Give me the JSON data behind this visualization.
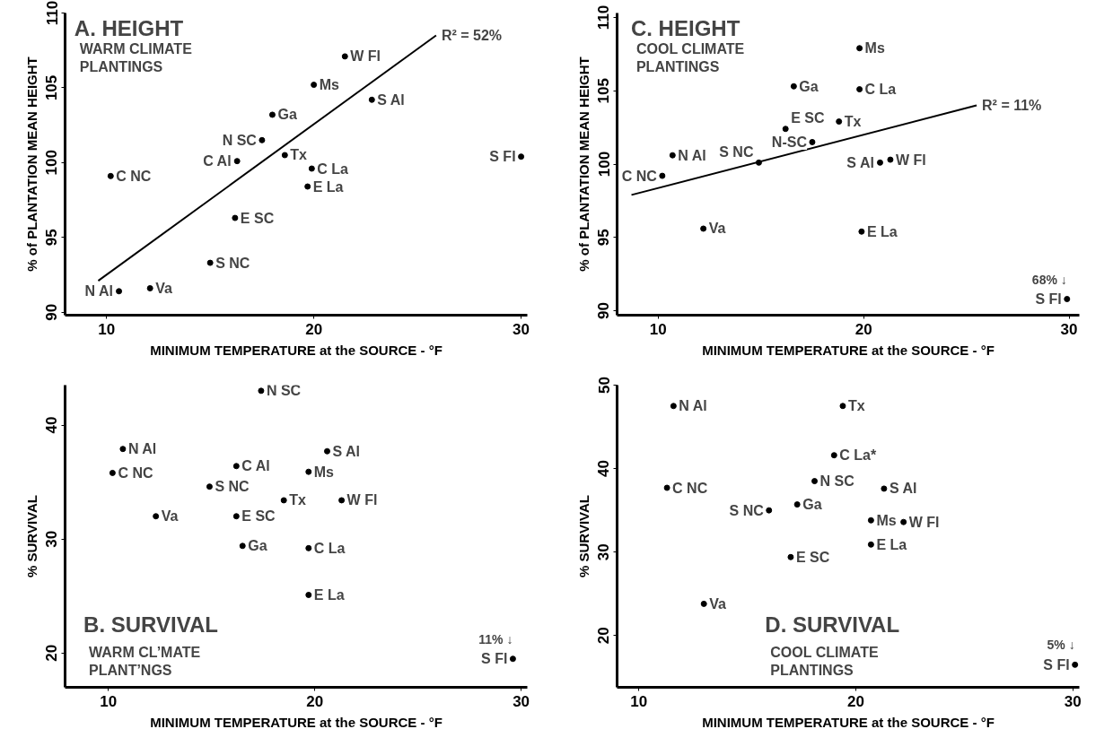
{
  "chart_data": [
    {
      "type": "scatter",
      "title": "A. HEIGHT",
      "subtitle": "WARM CLIMATE\nPLANTINGS",
      "xlabel": "MINIMUM TEMPERATURE at the SOURCE - °F",
      "ylabel": "% of PLANTATION MEAN HEIGHT",
      "xlim": [
        8,
        30.3
      ],
      "ylim": [
        89.8,
        110
      ],
      "xticks": [
        10,
        20,
        30
      ],
      "yticks": [
        90,
        95,
        100,
        105,
        110
      ],
      "series": [
        {
          "marker": "circle",
          "color": "#000000",
          "x": [
            10.6,
            12.1,
            15.0,
            16.2,
            10.2,
            16.3,
            17.5,
            18.0,
            22.8,
            20.0,
            21.5,
            18.6,
            19.9,
            19.7,
            30.0
          ],
          "values": [
            91.4,
            91.6,
            93.3,
            96.3,
            99.1,
            100.1,
            101.5,
            103.2,
            104.2,
            105.2,
            107.1,
            100.5,
            99.6,
            98.4,
            100.4
          ]
        },
        {
          "type": "line",
          "color": "#000000",
          "x": [
            9.6,
            25.9
          ],
          "values": [
            92.1,
            108.5
          ]
        }
      ],
      "annotations": [
        {
          "text": "N Al",
          "x": 10.6,
          "y": 91.4
        },
        {
          "text": "Va",
          "x": 12.1,
          "y": 91.6
        },
        {
          "text": "S NC",
          "x": 15.0,
          "y": 93.3
        },
        {
          "text": "E SC",
          "x": 16.2,
          "y": 96.3
        },
        {
          "text": "C NC",
          "x": 10.2,
          "y": 99.1
        },
        {
          "text": "C Al",
          "x": 16.3,
          "y": 100.1
        },
        {
          "text": "N SC",
          "x": 17.5,
          "y": 101.5
        },
        {
          "text": "Ga",
          "x": 18.0,
          "y": 103.2
        },
        {
          "text": "S Al",
          "x": 22.8,
          "y": 104.2
        },
        {
          "text": "Ms",
          "x": 20.0,
          "y": 105.2
        },
        {
          "text": "W Fl",
          "x": 21.5,
          "y": 107.1
        },
        {
          "text": "Tx",
          "x": 18.6,
          "y": 100.5
        },
        {
          "text": "C La",
          "x": 19.9,
          "y": 99.6
        },
        {
          "text": "E La",
          "x": 19.7,
          "y": 98.4
        },
        {
          "text": "S Fl",
          "x": 30.0,
          "y": 100.4
        },
        {
          "text": "R² = 52%",
          "x": 25.9,
          "y": 108.5
        }
      ]
    },
    {
      "type": "scatter",
      "title": "C. HEIGHT",
      "subtitle": "COOL CLIMATE\nPLANTINGS",
      "xlabel": "MINIMUM TEMPERATURE at the SOURCE - °F",
      "ylabel": "% of PLANTATION MEAN HEIGHT",
      "xlim": [
        8,
        30.5
      ],
      "ylim": [
        89.7,
        110.3
      ],
      "xticks": [
        10,
        20,
        30
      ],
      "yticks": [
        90,
        95,
        100,
        105,
        110
      ],
      "series": [
        {
          "marker": "circle",
          "color": "#000000",
          "x": [
            10.7,
            10.2,
            14.9,
            20.8,
            21.3,
            17.5,
            18.8,
            16.2,
            16.6,
            19.8,
            19.8,
            19.9,
            12.2,
            29.9
          ],
          "values": [
            100.6,
            99.2,
            100.1,
            100.1,
            100.3,
            101.5,
            102.9,
            102.4,
            105.3,
            107.9,
            105.1,
            95.4,
            95.6,
            90.8
          ]
        },
        {
          "type": "line",
          "color": "#000000",
          "x": [
            8.7,
            25.5
          ],
          "values": [
            97.9,
            104.0
          ]
        }
      ],
      "annotations": [
        {
          "text": "N Al",
          "x": 10.7,
          "y": 100.6
        },
        {
          "text": "C NC",
          "x": 10.2,
          "y": 99.2
        },
        {
          "text": "S NC",
          "x": 14.9,
          "y": 100.1
        },
        {
          "text": "S Al",
          "x": 20.8,
          "y": 100.1
        },
        {
          "text": "W Fl",
          "x": 21.3,
          "y": 100.3
        },
        {
          "text": "N-SC",
          "x": 17.5,
          "y": 101.5
        },
        {
          "text": "Tx",
          "x": 18.8,
          "y": 102.9
        },
        {
          "text": "E SC",
          "x": 16.2,
          "y": 102.4
        },
        {
          "text": "Ga",
          "x": 16.6,
          "y": 105.3
        },
        {
          "text": "Ms",
          "x": 19.8,
          "y": 107.9
        },
        {
          "text": "C La",
          "x": 19.8,
          "y": 105.1
        },
        {
          "text": "E La",
          "x": 19.9,
          "y": 95.4
        },
        {
          "text": "Va",
          "x": 12.2,
          "y": 95.6
        },
        {
          "text": "S Fl",
          "x": 29.9,
          "y": 90.8
        },
        {
          "text": "68% ↓",
          "x": 29.9,
          "y": 90.8
        },
        {
          "text": "R² = 11%",
          "x": 25.5,
          "y": 104.0
        }
      ]
    },
    {
      "type": "scatter",
      "title": "B. SURVIVAL",
      "subtitle": "WARM CL’MATE\nPLANT’NGS",
      "xlabel": "MINIMUM TEMPERATURE at the SOURCE - °F",
      "ylabel": "% SURVIVAL",
      "xlim": [
        7.9,
        30.3
      ],
      "ylim": [
        17,
        43.5
      ],
      "xticks": [
        10,
        20,
        30
      ],
      "yticks": [
        20,
        30,
        40
      ],
      "series": [
        {
          "marker": "circle",
          "color": "#000000",
          "x": [
            10.7,
            10.2,
            16.2,
            20.6,
            19.7,
            14.9,
            18.5,
            21.3,
            12.3,
            16.2,
            16.5,
            19.7,
            19.7,
            29.6,
            17.4
          ],
          "values": [
            37.9,
            35.8,
            36.4,
            37.7,
            35.9,
            34.6,
            33.4,
            33.4,
            32.0,
            32.0,
            29.4,
            29.2,
            25.1,
            19.5,
            43.0
          ]
        }
      ],
      "annotations": [
        {
          "text": "N Al",
          "x": 10.7,
          "y": 37.9
        },
        {
          "text": "C NC",
          "x": 10.2,
          "y": 35.8
        },
        {
          "text": "C Al",
          "x": 16.2,
          "y": 36.4
        },
        {
          "text": "S Al",
          "x": 20.6,
          "y": 37.7
        },
        {
          "text": "Ms",
          "x": 19.7,
          "y": 35.9
        },
        {
          "text": "S NC",
          "x": 14.9,
          "y": 34.6
        },
        {
          "text": "Tx",
          "x": 18.5,
          "y": 33.4
        },
        {
          "text": "W Fl",
          "x": 21.3,
          "y": 33.4
        },
        {
          "text": "Va",
          "x": 12.3,
          "y": 32.0
        },
        {
          "text": "E SC",
          "x": 16.2,
          "y": 32.0
        },
        {
          "text": "Ga",
          "x": 16.5,
          "y": 29.4
        },
        {
          "text": "C La",
          "x": 19.7,
          "y": 29.2
        },
        {
          "text": "E La",
          "x": 19.7,
          "y": 25.1
        },
        {
          "text": "S Fl",
          "x": 29.6,
          "y": 19.5
        },
        {
          "text": "11% ↓",
          "x": 29.6,
          "y": 19.5
        },
        {
          "text": "N SC",
          "x": 17.4,
          "y": 43.0
        }
      ]
    },
    {
      "type": "scatter",
      "title": "D. SURVIVAL",
      "subtitle": "COOL CLIMATE\nPLANTINGS",
      "xlabel": "MINIMUM TEMPERATURE at the SOURCE - °F",
      "ylabel": "% SURVIVAL",
      "xlim": [
        9,
        30.3
      ],
      "ylim": [
        13.8,
        50
      ],
      "xticks": [
        10,
        20,
        30
      ],
      "yticks": [
        20,
        30,
        40,
        50
      ],
      "series": [
        {
          "marker": "circle",
          "color": "#000000",
          "x": [
            11.6,
            19.4,
            19.0,
            18.1,
            11.3,
            21.3,
            16.0,
            17.3,
            20.7,
            22.2,
            20.7,
            17.0,
            13.0,
            30.1
          ],
          "values": [
            47.5,
            47.5,
            41.6,
            38.5,
            37.7,
            37.6,
            35.0,
            35.7,
            33.8,
            33.6,
            30.9,
            29.4,
            23.8,
            16.5
          ]
        }
      ],
      "annotations": [
        {
          "text": "N Al",
          "x": 11.6,
          "y": 47.5
        },
        {
          "text": "Tx",
          "x": 19.4,
          "y": 47.5
        },
        {
          "text": "C La*",
          "x": 19.0,
          "y": 41.6
        },
        {
          "text": "N SC",
          "x": 18.1,
          "y": 38.5
        },
        {
          "text": "C NC",
          "x": 11.3,
          "y": 37.7
        },
        {
          "text": "S Al",
          "x": 21.3,
          "y": 37.6
        },
        {
          "text": "S NC",
          "x": 16.0,
          "y": 35.0
        },
        {
          "text": "Ga",
          "x": 17.3,
          "y": 35.7
        },
        {
          "text": "Ms",
          "x": 20.7,
          "y": 33.8
        },
        {
          "text": "W Fl",
          "x": 22.2,
          "y": 33.6
        },
        {
          "text": "E La",
          "x": 20.7,
          "y": 30.9
        },
        {
          "text": "E SC",
          "x": 17.0,
          "y": 29.4
        },
        {
          "text": "Va",
          "x": 13.0,
          "y": 23.8
        },
        {
          "text": "S Fl",
          "x": 30.1,
          "y": 16.5
        },
        {
          "text": "5% ↓",
          "x": 30.1,
          "y": 16.5
        }
      ]
    }
  ]
}
